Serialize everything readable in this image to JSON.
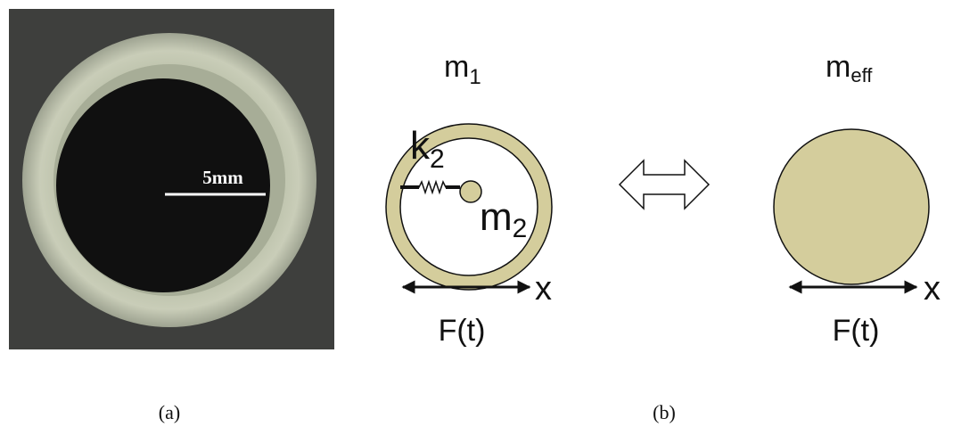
{
  "photo": {
    "scale_label": "5mm"
  },
  "left_model": {
    "mass1": {
      "base": "m",
      "sub": "1"
    },
    "spring": {
      "base": "k",
      "sub": "2"
    },
    "mass2": {
      "base": "m",
      "sub": "2"
    },
    "axis": "x",
    "force": "F(t)"
  },
  "right_model": {
    "mass": {
      "base": "m",
      "sub": "eff"
    },
    "axis": "x",
    "force": "F(t)"
  },
  "captions": {
    "a": "(a)",
    "b": "(b)"
  }
}
